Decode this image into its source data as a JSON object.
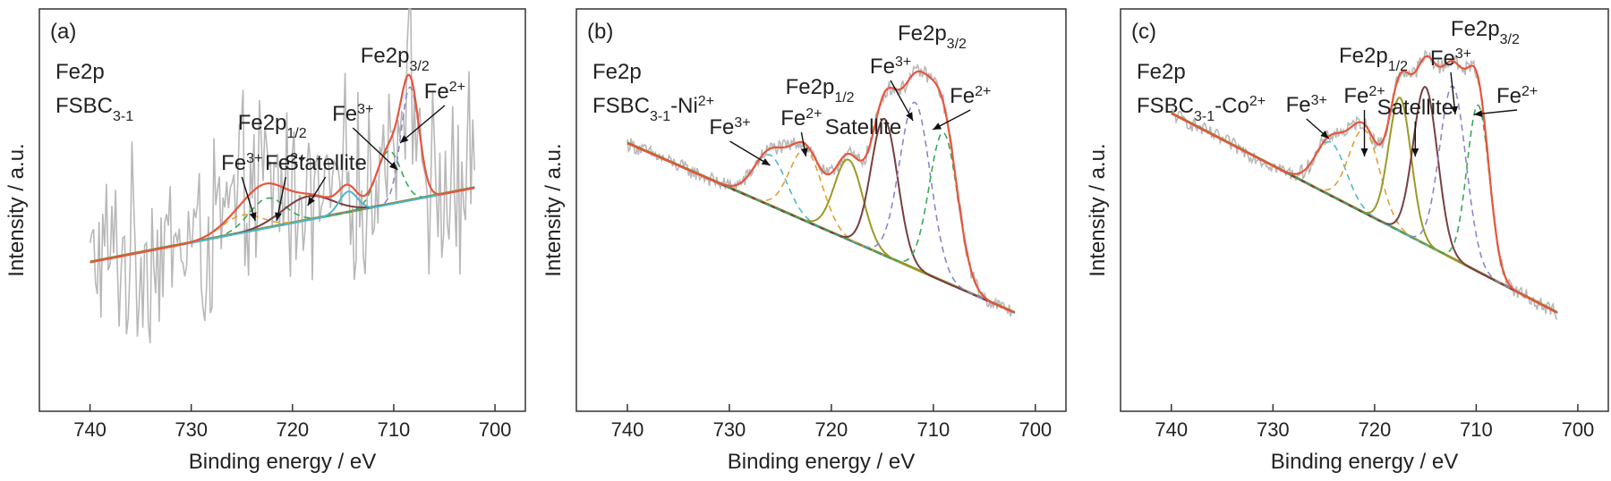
{
  "figure": {
    "colors": {
      "raw": "#b8b8b8",
      "envelope": "#e8553c",
      "fe3_cyan": "#4fb7c9",
      "fe2_orange": "#e0a030",
      "satellite_olive": "#9a9a28",
      "satellite_maroon": "#7a3e3e",
      "fe3_lavender": "#8c86cc",
      "fe2_green": "#3aa65a",
      "background_blue": "#3b7dc4",
      "background_olive": "#8a8a30"
    }
  },
  "chart_data": [
    {
      "type": "line",
      "panel_label": "(a)",
      "annotation_lines": [
        {
          "base": "Fe2p",
          "sub": "",
          "sup": ""
        },
        {
          "base": "FSBC",
          "sub": "3-1",
          "sup": ""
        }
      ],
      "xlabel": "Binding energy / eV",
      "ylabel": "Intensity / a.u.",
      "xlim": [
        745,
        697
      ],
      "x_reversed": true,
      "xticks": [
        740,
        730,
        720,
        710,
        700
      ],
      "y_tick_labels_shown": false,
      "grid": false,
      "legend": "none",
      "noise_level": "high",
      "peak_labels": [
        {
          "base": "Fe2p",
          "sub": "3/2",
          "sup": "",
          "x": 709
        },
        {
          "base": "Fe",
          "sub": "",
          "sup": "2+",
          "x": 708.5
        },
        {
          "base": "Fe",
          "sub": "",
          "sup": "3+",
          "x": 710.5
        },
        {
          "base": "Fe2p",
          "sub": "1/2",
          "sup": "",
          "x": 722
        },
        {
          "base": "Fe",
          "sub": "",
          "sup": "3+",
          "x": 725
        },
        {
          "base": "Fe",
          "sub": "",
          "sup": "2+",
          "x": 722
        },
        {
          "base": "Statellite",
          "sub": "",
          "sup": "",
          "x": 718.5
        }
      ],
      "baseline": {
        "x_start": 740,
        "y_start": 0.23,
        "x_end": 702,
        "y_end": 0.48
      },
      "components": [
        {
          "name": "Fe3+",
          "center": 710.5,
          "height": 0.18,
          "width": 1.2,
          "color": "#3aa65a"
        },
        {
          "name": "Fe2+",
          "center": 708.4,
          "height": 0.38,
          "width": 0.9,
          "color": "#8c86cc"
        },
        {
          "name": "Fe3+",
          "center": 725.0,
          "height": 0.06,
          "width": 2.0,
          "color": "#e0a030"
        },
        {
          "name": "Fe2+",
          "center": 722.5,
          "height": 0.1,
          "width": 1.8,
          "color": "#3aa65a"
        },
        {
          "name": "Satellite",
          "center": 718.5,
          "height": 0.08,
          "width": 2.5,
          "color": "#7a3e3e"
        },
        {
          "name": "Satellite",
          "center": 714.5,
          "height": 0.07,
          "width": 0.9,
          "color": "#4fb7c9"
        }
      ],
      "raw_range": [
        0.0,
        1.0
      ]
    },
    {
      "type": "line",
      "panel_label": "(b)",
      "annotation_lines": [
        {
          "base": "Fe2p",
          "sub": "",
          "sup": ""
        },
        {
          "base": "FSBC",
          "sub": "3-1",
          "sup": "",
          "suffix": "-Ni",
          "suffix_sup": "2+"
        }
      ],
      "xlabel": "Binding energy / eV",
      "ylabel": "Intensity / a.u.",
      "xlim": [
        745,
        697
      ],
      "x_reversed": true,
      "xticks": [
        740,
        730,
        720,
        710,
        700
      ],
      "y_tick_labels_shown": false,
      "grid": false,
      "legend": "none",
      "peak_labels": [
        {
          "base": "Fe2p",
          "sub": "3/2",
          "sup": "",
          "x": 711
        },
        {
          "base": "Fe",
          "sub": "",
          "sup": "3+",
          "x": 712
        },
        {
          "base": "Fe",
          "sub": "",
          "sup": "2+",
          "x": 709
        },
        {
          "base": "Fe2p",
          "sub": "1/2",
          "sup": "",
          "x": 722
        },
        {
          "base": "Fe",
          "sub": "",
          "sup": "3+",
          "x": 726
        },
        {
          "base": "Fe",
          "sub": "",
          "sup": "2+",
          "x": 722.5
        },
        {
          "base": "Satellite",
          "sub": "",
          "sup": "",
          "x": 716
        }
      ],
      "baseline": {
        "x_start": 740,
        "y_start": 0.63,
        "x_end": 702,
        "y_end": 0.06
      },
      "components": [
        {
          "name": "Fe3+",
          "center": 726.0,
          "height": 0.17,
          "width": 1.6,
          "color": "#4fb7c9"
        },
        {
          "name": "Fe2+",
          "center": 722.5,
          "height": 0.24,
          "width": 1.6,
          "color": "#e0a030"
        },
        {
          "name": "Satellite",
          "center": 718.3,
          "height": 0.27,
          "width": 1.4,
          "color": "#9a9a28"
        },
        {
          "name": "Satellite",
          "center": 714.8,
          "height": 0.46,
          "width": 1.3,
          "color": "#7a3e3e"
        },
        {
          "name": "Fe3+",
          "center": 711.8,
          "height": 0.56,
          "width": 1.5,
          "color": "#8c86cc"
        },
        {
          "name": "Fe2+",
          "center": 709.0,
          "height": 0.5,
          "width": 1.4,
          "color": "#3aa65a"
        }
      ],
      "raw_range": [
        0.0,
        1.0
      ]
    },
    {
      "type": "line",
      "panel_label": "(c)",
      "annotation_lines": [
        {
          "base": "Fe2p",
          "sub": "",
          "sup": ""
        },
        {
          "base": "FSBC",
          "sub": "3-1",
          "sup": "",
          "suffix": "-Co",
          "suffix_sup": "2+"
        }
      ],
      "xlabel": "Binding energy / eV",
      "ylabel": "Intensity / a.u.",
      "xlim": [
        745,
        697
      ],
      "x_reversed": true,
      "xticks": [
        740,
        730,
        720,
        710,
        700
      ],
      "y_tick_labels_shown": false,
      "grid": false,
      "legend": "none",
      "peak_labels": [
        {
          "base": "Fe2p",
          "sub": "3/2",
          "sup": "",
          "x": 710
        },
        {
          "base": "Fe",
          "sub": "",
          "sup": "2+",
          "x": 709.5
        },
        {
          "base": "Fe",
          "sub": "",
          "sup": "3+",
          "x": 712.5
        },
        {
          "base": "Fe2p",
          "sub": "1/2",
          "sup": "",
          "x": 721
        },
        {
          "base": "Fe",
          "sub": "",
          "sup": "3+",
          "x": 724.5
        },
        {
          "base": "Fe",
          "sub": "",
          "sup": "2+",
          "x": 721
        },
        {
          "base": "Satellite",
          "sub": "",
          "sup": "",
          "x": 716
        }
      ],
      "baseline": {
        "x_start": 740,
        "y_start": 0.73,
        "x_end": 702,
        "y_end": 0.06
      },
      "components": [
        {
          "name": "Fe3+",
          "center": 724.3,
          "height": 0.18,
          "width": 1.5,
          "color": "#4fb7c9"
        },
        {
          "name": "Fe2+",
          "center": 721.0,
          "height": 0.28,
          "width": 1.5,
          "color": "#e0a030"
        },
        {
          "name": "Satellite",
          "center": 717.5,
          "height": 0.45,
          "width": 1.1,
          "color": "#9a9a28"
        },
        {
          "name": "Satellite",
          "center": 715.0,
          "height": 0.53,
          "width": 1.2,
          "color": "#7a3e3e"
        },
        {
          "name": "Fe3+",
          "center": 712.3,
          "height": 0.58,
          "width": 1.3,
          "color": "#8c86cc"
        },
        {
          "name": "Fe2+",
          "center": 709.8,
          "height": 0.56,
          "width": 1.1,
          "color": "#3aa65a"
        }
      ],
      "raw_range": [
        0.0,
        1.0
      ]
    }
  ]
}
